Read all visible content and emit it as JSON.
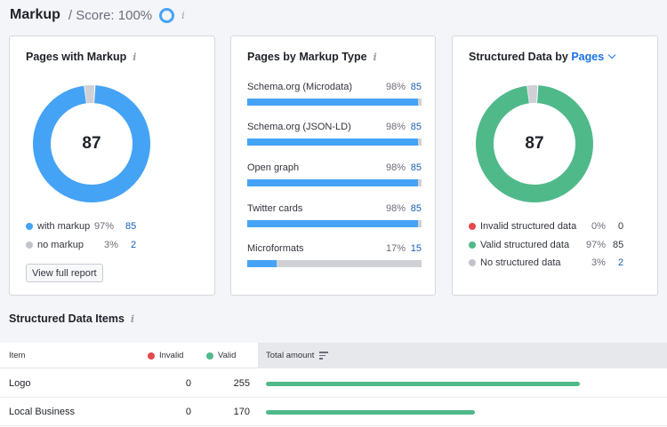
{
  "header": {
    "title": "Markup",
    "score": "/ Score: 100%",
    "info_icon": "info-icon"
  },
  "colors": {
    "blue": "#45a3f5",
    "green": "#50b98a",
    "gray": "#cfd1d6",
    "red": "#e5484d",
    "link": "#1a73e8"
  },
  "card1": {
    "title": "Pages with Markup",
    "center_value": "87",
    "donut": [
      {
        "name": "with markup",
        "fraction": 0.97,
        "color": "#45a3f5"
      },
      {
        "name": "no markup",
        "fraction": 0.03,
        "color": "#cfd1d6"
      }
    ],
    "legend": [
      {
        "label": "with markup",
        "pct": "97%",
        "count": "85",
        "color": "#45a3f5"
      },
      {
        "label": "no markup",
        "pct": "3%",
        "count": "2",
        "color": "#c2c4ca"
      }
    ],
    "button_label": "View full report"
  },
  "card2": {
    "title": "Pages by Markup Type",
    "rows": [
      {
        "label": "Schema.org (Microdata)",
        "pct": "98%",
        "count": "85",
        "fill": 0.98
      },
      {
        "label": "Schema.org (JSON-LD)",
        "pct": "98%",
        "count": "85",
        "fill": 0.98
      },
      {
        "label": "Open graph",
        "pct": "98%",
        "count": "85",
        "fill": 0.98
      },
      {
        "label": "Twitter cards",
        "pct": "98%",
        "count": "85",
        "fill": 0.98
      },
      {
        "label": "Microformats",
        "pct": "17%",
        "count": "15",
        "fill": 0.17
      }
    ]
  },
  "card3": {
    "title_prefix": "Structured Data by",
    "title_link": "Pages",
    "center_value": "87",
    "donut": [
      {
        "name": "Valid structured data",
        "fraction": 0.97,
        "color": "#50b98a"
      },
      {
        "name": "No structured data",
        "fraction": 0.03,
        "color": "#cfd1d6"
      }
    ],
    "legend": [
      {
        "label": "Invalid structured data",
        "pct": "0%",
        "count": "0",
        "color": "#e5484d"
      },
      {
        "label": "Valid structured data",
        "pct": "97%",
        "count": "85",
        "color": "#50b98a"
      },
      {
        "label": "No structured data",
        "pct": "3%",
        "count": "2",
        "color": "#c2c4ca"
      }
    ]
  },
  "items_section": {
    "title": "Structured Data Items",
    "columns": {
      "item": "Item",
      "invalid": "Invalid",
      "valid": "Valid",
      "total": "Total amount"
    },
    "rows": [
      {
        "item": "Logo",
        "invalid": "0",
        "valid": "255",
        "total_fraction": 1.0
      },
      {
        "item": "Local Business",
        "invalid": "0",
        "valid": "170",
        "total_fraction": 0.667
      }
    ]
  }
}
